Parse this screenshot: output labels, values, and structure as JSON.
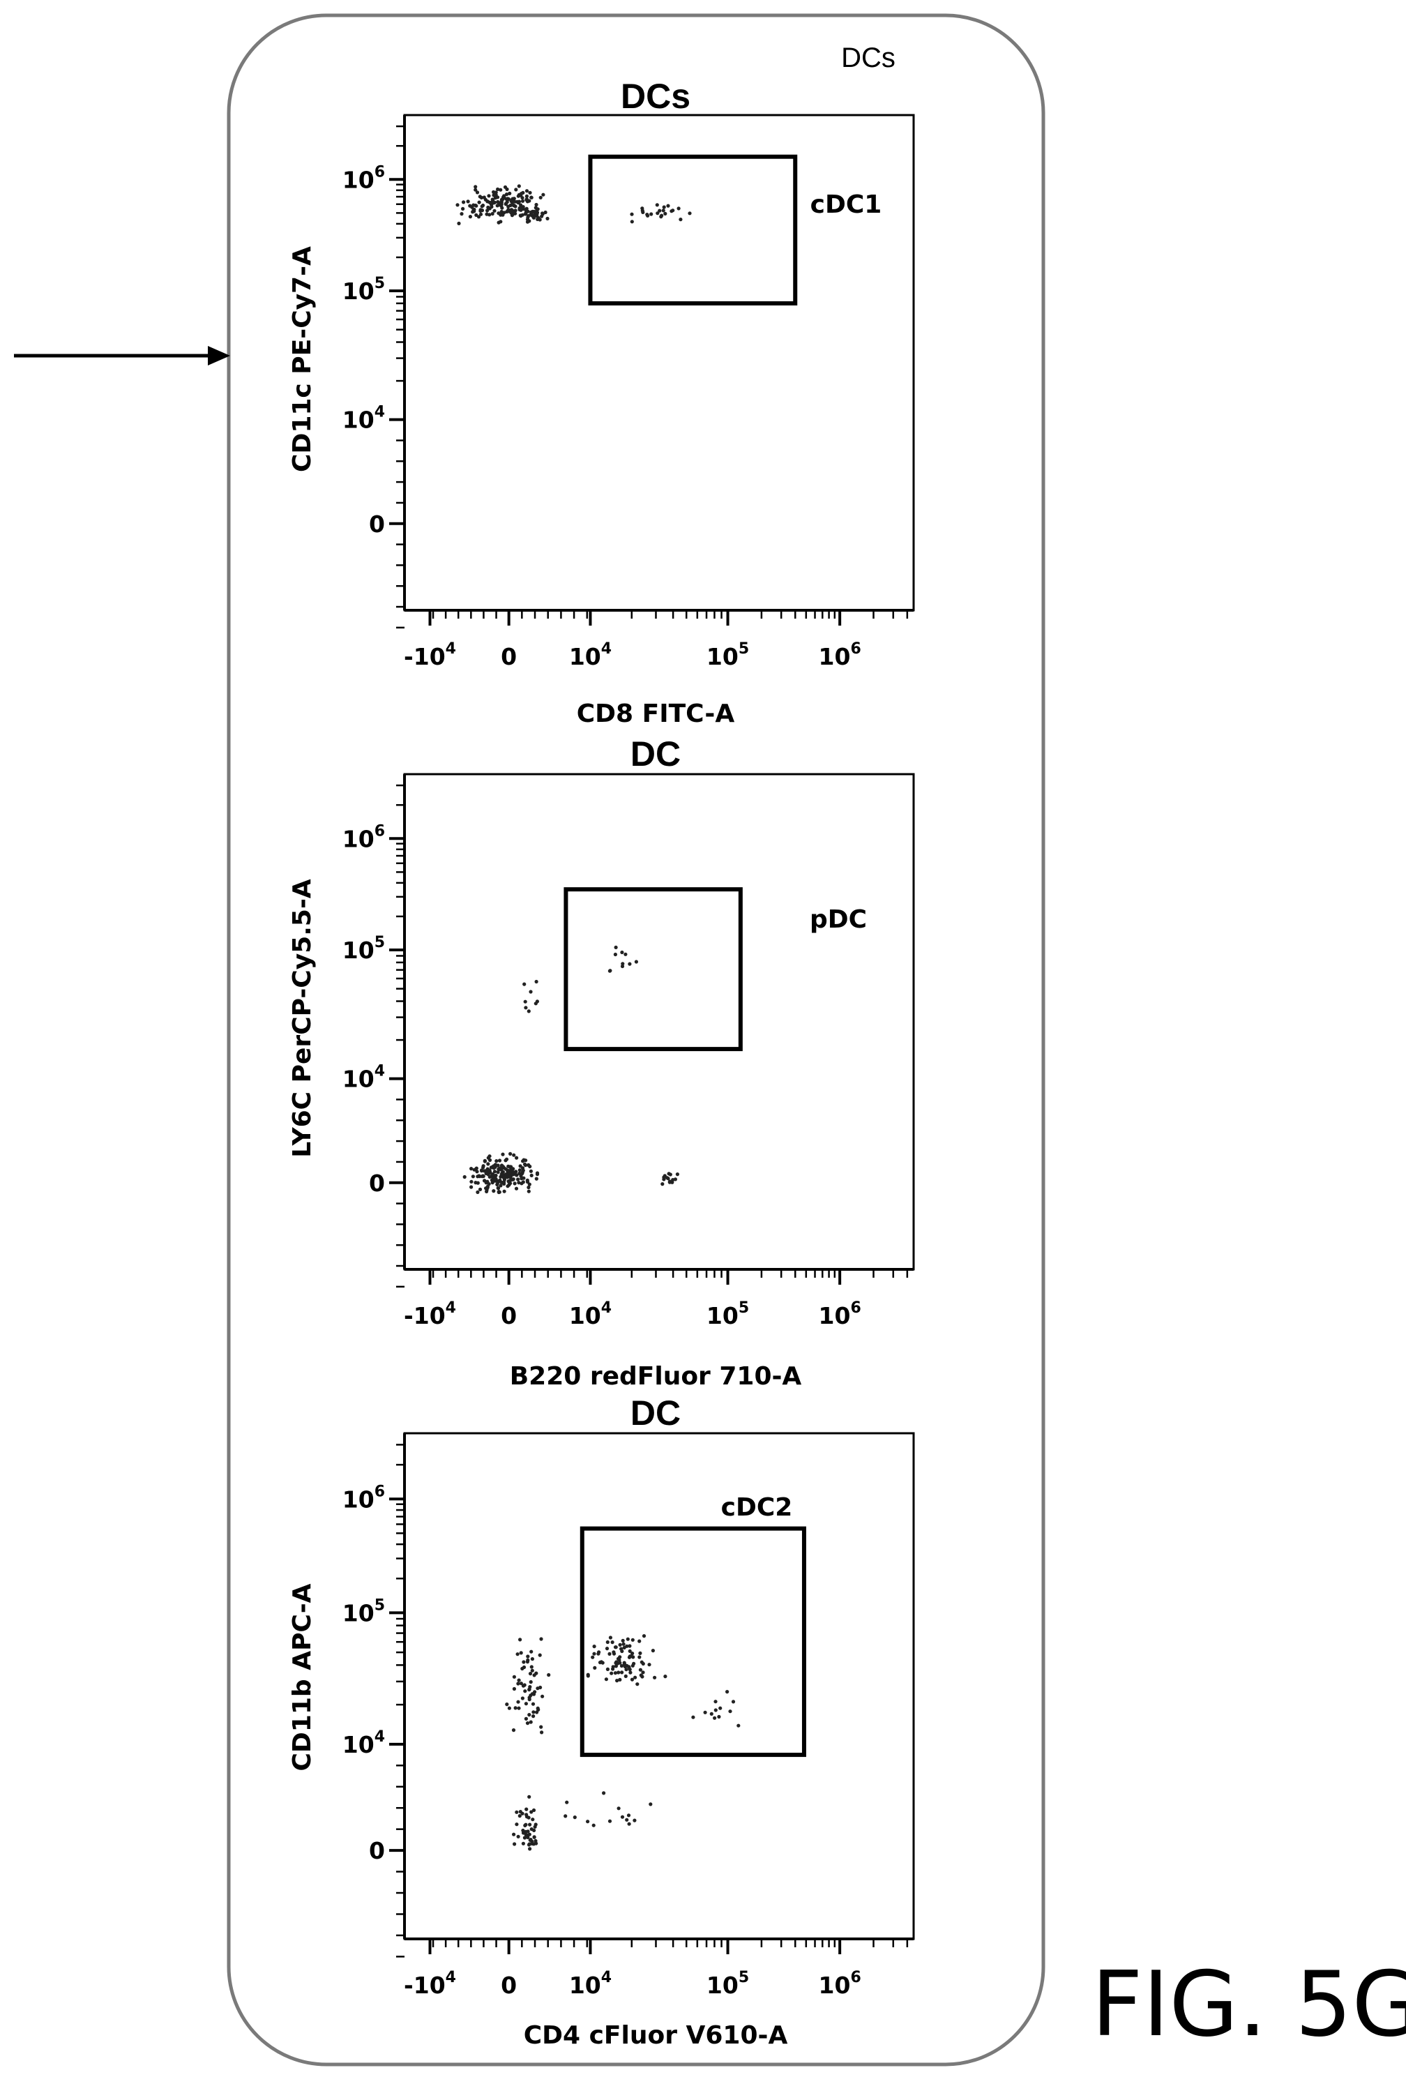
{
  "panel_name": "DCs",
  "figure_label": "FIG. 5G",
  "colors": {
    "line": "#000000",
    "frame": "#7a7a7a",
    "dot": "#222222"
  },
  "chart_data": [
    {
      "type": "scatter",
      "title": "DCs",
      "xlabel": "CD8 FITC-A",
      "ylabel": "CD11c PE-Cy7-A",
      "x_scale": "biexponential",
      "y_scale": "biexponential",
      "x_ticks": [
        {
          "base": "-10",
          "exp": "4"
        },
        {
          "base": "0",
          "exp": ""
        },
        {
          "base": "10",
          "exp": "4"
        },
        {
          "base": "10",
          "exp": "5"
        },
        {
          "base": "10",
          "exp": "6"
        }
      ],
      "y_ticks": [
        {
          "base": "10",
          "exp": "6"
        },
        {
          "base": "10",
          "exp": "5"
        },
        {
          "base": "10",
          "exp": "4"
        },
        {
          "base": "0",
          "exp": ""
        }
      ],
      "gate": {
        "name": "cDC1",
        "x_range": [
          10000,
          400000
        ],
        "y_range": [
          80000,
          1600000
        ]
      }
    },
    {
      "type": "scatter",
      "title": "DC",
      "xlabel": "B220 redFluor 710-A",
      "ylabel": "LY6C PerCP-Cy5.5-A",
      "x_scale": "biexponential",
      "y_scale": "biexponential",
      "x_ticks": [
        {
          "base": "-10",
          "exp": "4"
        },
        {
          "base": "0",
          "exp": ""
        },
        {
          "base": "10",
          "exp": "4"
        },
        {
          "base": "10",
          "exp": "5"
        },
        {
          "base": "10",
          "exp": "6"
        }
      ],
      "y_ticks": [
        {
          "base": "10",
          "exp": "6"
        },
        {
          "base": "10",
          "exp": "5"
        },
        {
          "base": "10",
          "exp": "4"
        },
        {
          "base": "0",
          "exp": ""
        }
      ],
      "gate": {
        "name": "pDC",
        "x_range": [
          7000,
          130000
        ],
        "y_range": [
          17000,
          350000
        ]
      }
    },
    {
      "type": "scatter",
      "title": "DC",
      "xlabel": "CD4 cFluor V610-A",
      "ylabel": "CD11b APC-A",
      "x_scale": "biexponential",
      "y_scale": "biexponential",
      "x_ticks": [
        {
          "base": "-10",
          "exp": "4"
        },
        {
          "base": "0",
          "exp": ""
        },
        {
          "base": "10",
          "exp": "4"
        },
        {
          "base": "10",
          "exp": "5"
        },
        {
          "base": "10",
          "exp": "6"
        }
      ],
      "y_ticks": [
        {
          "base": "10",
          "exp": "6"
        },
        {
          "base": "10",
          "exp": "5"
        },
        {
          "base": "10",
          "exp": "4"
        },
        {
          "base": "0",
          "exp": ""
        }
      ],
      "gate": {
        "name": "cDC2",
        "x_range": [
          9000,
          480000
        ],
        "y_range": [
          9000,
          550000
        ]
      }
    }
  ]
}
